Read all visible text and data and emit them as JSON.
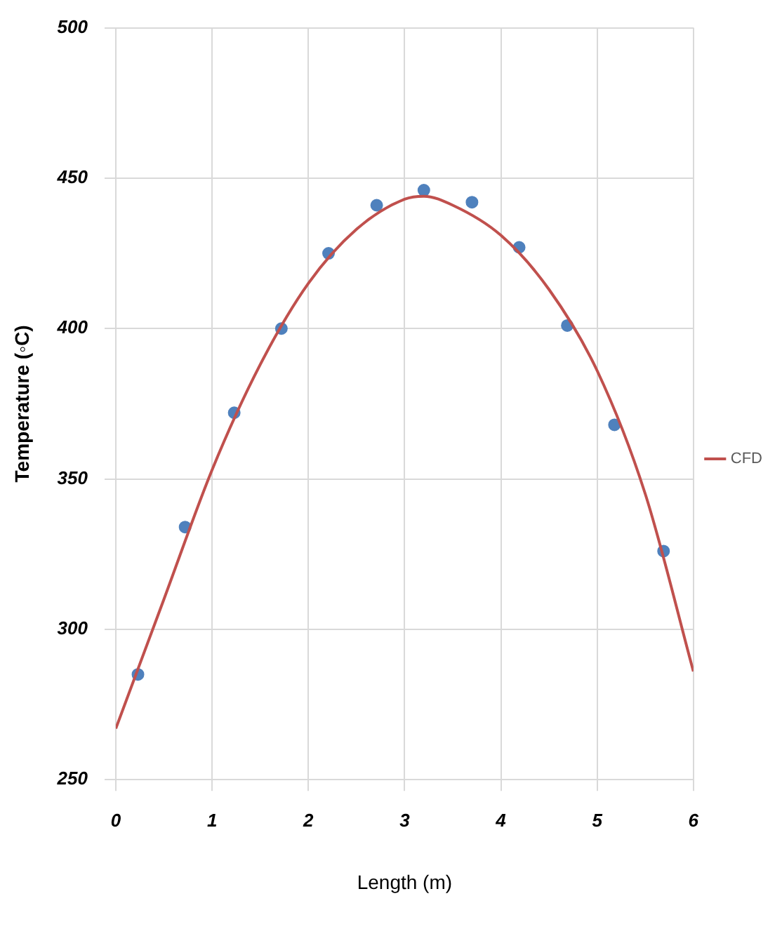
{
  "chart_data": {
    "type": "line",
    "xlabel": "Length (m)",
    "ylabel": "Temperature (◦C)",
    "xlim": [
      0,
      6
    ],
    "xticks": [
      0,
      1,
      2,
      3,
      4,
      5,
      6
    ],
    "ylim": [
      250,
      500
    ],
    "yticks": [
      250,
      300,
      350,
      400,
      450,
      500
    ],
    "grid": true,
    "legend": "right",
    "series": [
      {
        "name": "CFD",
        "type": "line",
        "color": "#c0504d",
        "marker": "none",
        "x": [
          0,
          0.5,
          1,
          1.5,
          2,
          2.5,
          3,
          3.2,
          3.5,
          4,
          4.5,
          5,
          5.5,
          6
        ],
        "values": [
          267,
          310,
          353,
          388,
          415,
          433,
          443,
          444,
          441,
          431,
          413,
          386,
          345,
          286
        ]
      },
      {
        "type": "scatter",
        "color": "#4f81bd",
        "marker": "circle",
        "x": [
          0.23,
          0.72,
          1.23,
          1.72,
          2.21,
          2.71,
          3.2,
          3.7,
          4.19,
          4.69,
          5.18,
          5.69
        ],
        "values": [
          285,
          334,
          372,
          400,
          425,
          441,
          446,
          442,
          427,
          401,
          368,
          326
        ]
      }
    ]
  }
}
